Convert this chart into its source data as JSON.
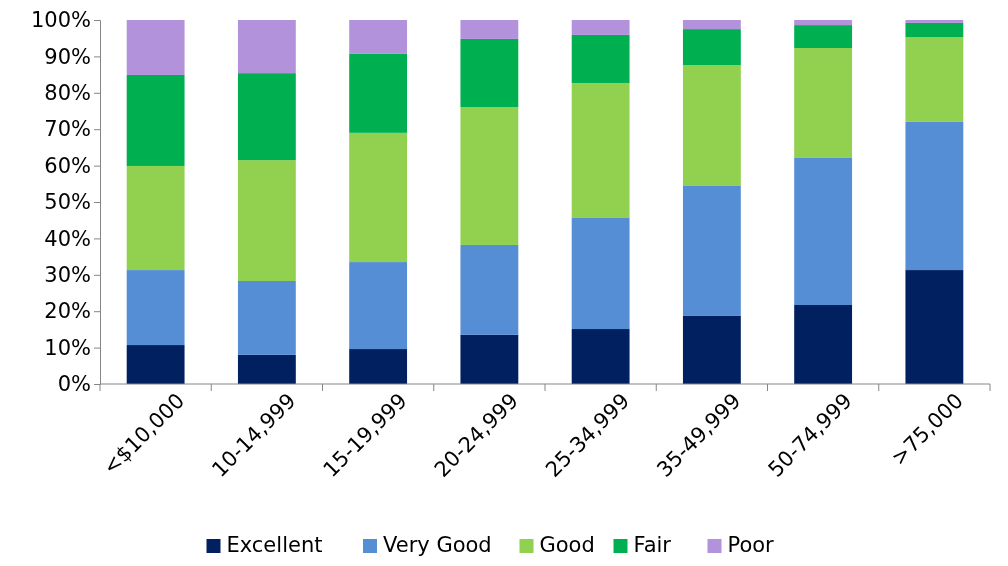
{
  "chart_data": {
    "type": "bar",
    "stacked": true,
    "categories": [
      "<$10,000",
      "10-14,999",
      "15-19,999",
      "20-24,999",
      "25-34,999",
      "35-49,999",
      "50-74,999",
      ">75,000"
    ],
    "series": [
      {
        "name": "Excellent",
        "color": "#002060",
        "values": [
          10.7,
          8.0,
          9.6,
          13.5,
          15.1,
          18.7,
          21.7,
          31.3
        ]
      },
      {
        "name": "Very Good",
        "color": "#558ed5",
        "values": [
          20.6,
          20.3,
          23.9,
          24.7,
          30.5,
          35.7,
          40.4,
          40.7
        ]
      },
      {
        "name": "Good",
        "color": "#92d050",
        "values": [
          28.6,
          33.2,
          35.5,
          37.9,
          37.1,
          33.2,
          30.2,
          23.3
        ]
      },
      {
        "name": "Fair",
        "color": "#00b050",
        "values": [
          25.0,
          23.9,
          21.7,
          18.7,
          13.2,
          9.9,
          6.3,
          3.9
        ]
      },
      {
        "name": "Poor",
        "color": "#b392dc",
        "values": [
          15.1,
          14.6,
          9.3,
          5.2,
          4.1,
          2.5,
          1.4,
          0.8
        ]
      }
    ],
    "ylim": [
      0,
      100
    ],
    "yticks": [
      {
        "value": 0,
        "label": "0%"
      },
      {
        "value": 10,
        "label": "10%"
      },
      {
        "value": 20,
        "label": "20%"
      },
      {
        "value": 30,
        "label": "30%"
      },
      {
        "value": 40,
        "label": "40%"
      },
      {
        "value": 50,
        "label": "50%"
      },
      {
        "value": 60,
        "label": "60%"
      },
      {
        "value": 70,
        "label": "70%"
      },
      {
        "value": 80,
        "label": "80%"
      },
      {
        "value": 90,
        "label": "90%"
      },
      {
        "value": 100,
        "label": "100%"
      }
    ],
    "grid": false,
    "legend": "bottom"
  }
}
